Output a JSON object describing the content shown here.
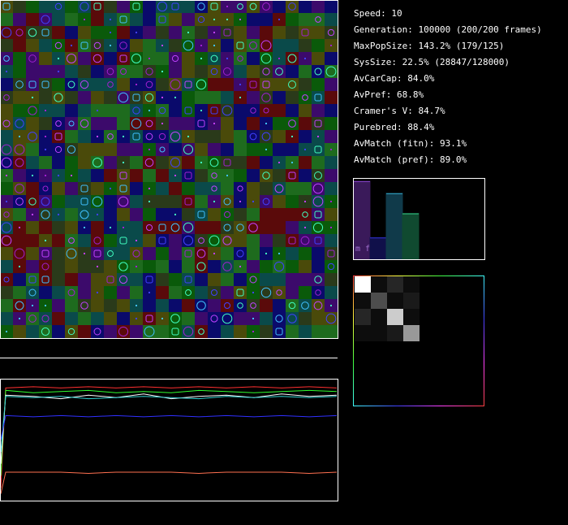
{
  "stats": [
    "Speed: 10",
    "Generation: 100000 (200/200 frames)",
    "MaxPopSize: 143.2% (179/125)",
    "SysSize: 22.5% (28847/128000)",
    "AvCarCap: 84.0%",
    "AvPref: 68.8%",
    "Cramer's V: 84.7%",
    "Purebred: 88.4%",
    "AvMatch (fitn): 93.1%",
    "AvMatch (pref): 89.0%"
  ],
  "chart_data": [
    {
      "type": "bar",
      "label": "m f",
      "values": [
        0.97,
        0.27,
        0.82,
        0.57
      ],
      "colors": [
        "#3a1a5a",
        "#10104a",
        "#103a4a",
        "#104a30"
      ],
      "ylim": [
        0,
        1
      ]
    },
    {
      "type": "heatmap",
      "values": [
        [
          1.0,
          0.05,
          0.15,
          0.05
        ],
        [
          0.05,
          0.3,
          0.05,
          0.1
        ],
        [
          0.15,
          0.05,
          0.8,
          0.05
        ],
        [
          0.05,
          0.05,
          0.1,
          0.6
        ]
      ]
    },
    {
      "type": "line",
      "ylim": [
        0,
        1
      ],
      "series": [
        {
          "color": "#ff3030",
          "values": [
            0.1,
            0.93,
            0.94,
            0.93,
            0.94,
            0.93,
            0.94,
            0.93,
            0.94,
            0.93,
            0.94,
            0.93,
            0.94,
            0.93
          ]
        },
        {
          "color": "#30ff30",
          "values": [
            0.2,
            0.91,
            0.89,
            0.9,
            0.91,
            0.89,
            0.9,
            0.89,
            0.91,
            0.9,
            0.89,
            0.9,
            0.91,
            0.9
          ]
        },
        {
          "color": "#ffffff",
          "values": [
            0.3,
            0.87,
            0.86,
            0.84,
            0.87,
            0.85,
            0.88,
            0.84,
            0.86,
            0.87,
            0.85,
            0.88,
            0.86,
            0.87
          ]
        },
        {
          "color": "#30d0d0",
          "values": [
            0.4,
            0.86,
            0.85,
            0.86,
            0.84,
            0.85,
            0.86,
            0.85,
            0.84,
            0.86,
            0.85,
            0.86,
            0.85,
            0.86
          ]
        },
        {
          "color": "#3030ff",
          "values": [
            0.5,
            0.7,
            0.69,
            0.7,
            0.69,
            0.7,
            0.69,
            0.7,
            0.69,
            0.7,
            0.69,
            0.7,
            0.69,
            0.7
          ]
        },
        {
          "color": "#ff7050",
          "values": [
            0.05,
            0.23,
            0.23,
            0.23,
            0.22,
            0.23,
            0.23,
            0.23,
            0.22,
            0.23,
            0.23,
            0.23,
            0.22,
            0.23
          ]
        }
      ]
    }
  ]
}
